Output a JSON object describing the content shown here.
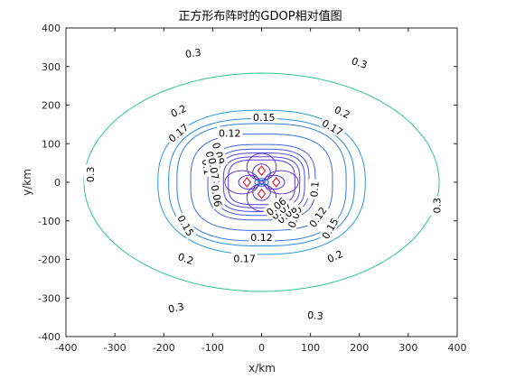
{
  "chart_data": {
    "type": "contour",
    "title": "正方形布阵时的GDOP相对值图",
    "xlabel": "x/km",
    "ylabel": "y/km",
    "xlim": [
      -400,
      400
    ],
    "ylim": [
      -400,
      400
    ],
    "xticks": [
      "-400",
      "-300",
      "-200",
      "-100",
      "0",
      "100",
      "200",
      "300",
      "400"
    ],
    "yticks": [
      "-400",
      "-300",
      "-200",
      "-100",
      "0",
      "100",
      "200",
      "300",
      "400"
    ],
    "grid": false,
    "stations": [
      [
        0,
        30
      ],
      [
        -30,
        0
      ],
      [
        30,
        0
      ],
      [
        0,
        -30
      ]
    ],
    "levels": [
      {
        "value": 0.3,
        "color": "#2ec489",
        "rx": 363,
        "ry": 283,
        "shape": 2,
        "labels": [
          {
            "text": "0.3",
            "x": -140,
            "y": 335,
            "rot": 8
          },
          {
            "text": "0.3",
            "x": 200,
            "y": 310,
            "rot": -18
          },
          {
            "text": "0.3",
            "x": -350,
            "y": 20,
            "rot": 90
          },
          {
            "text": "0.3",
            "x": 358,
            "y": -60,
            "rot": 90
          },
          {
            "text": "0.3",
            "x": -175,
            "y": -325,
            "rot": 12
          },
          {
            "text": "0.3",
            "x": 110,
            "y": -345,
            "rot": -5
          }
        ]
      },
      {
        "value": 0.2,
        "color": "#2d9ad4",
        "rx": 212,
        "ry": 187,
        "shape": 2.4,
        "labels": [
          {
            "text": "0.2",
            "x": -170,
            "y": 185,
            "rot": 25
          },
          {
            "text": "0.2",
            "x": 165,
            "y": 182,
            "rot": -25
          },
          {
            "text": "0.2",
            "x": -155,
            "y": -198,
            "rot": -20
          },
          {
            "text": "0.2",
            "x": 150,
            "y": -192,
            "rot": 25
          }
        ]
      },
      {
        "value": 0.17,
        "color": "#2b8cd8",
        "rx": 190,
        "ry": 165,
        "shape": 2.6,
        "labels": [
          {
            "text": "0.17",
            "x": -170,
            "y": 128,
            "rot": 40
          },
          {
            "text": "0.17",
            "x": 145,
            "y": 142,
            "rot": -30
          },
          {
            "text": "0.17",
            "x": -35,
            "y": -198,
            "rot": 0
          }
        ]
      },
      {
        "value": 0.15,
        "color": "#327fd9",
        "rx": 173,
        "ry": 152,
        "shape": 2.8,
        "labels": [
          {
            "text": "0.15",
            "x": 5,
            "y": 168,
            "rot": 0
          },
          {
            "text": "0.15",
            "x": -155,
            "y": -112,
            "rot": -60
          },
          {
            "text": "0.15",
            "x": 140,
            "y": -120,
            "rot": 60
          }
        ]
      },
      {
        "value": 0.12,
        "color": "#3a6fdc",
        "rx": 145,
        "ry": 125,
        "shape": 3,
        "labels": [
          {
            "text": "0.12",
            "x": -65,
            "y": 128,
            "rot": 0
          },
          {
            "text": "0.12",
            "x": 0,
            "y": -143,
            "rot": 0
          },
          {
            "text": "0.12",
            "x": 115,
            "y": -90,
            "rot": 55
          }
        ]
      },
      {
        "value": 0.1,
        "color": "#4060de",
        "rx": 110,
        "ry": 98,
        "shape": 3.2,
        "labels": [
          {
            "text": "0.1",
            "x": -112,
            "y": 40,
            "rot": -80
          },
          {
            "text": "0.1",
            "x": 108,
            "y": -18,
            "rot": 85
          }
        ]
      },
      {
        "value": 0.09,
        "color": "#4556e0",
        "rx": 97,
        "ry": 86,
        "shape": 3.3,
        "labels": [
          {
            "text": "0.09",
            "x": -88,
            "y": 75,
            "rot": -75
          },
          {
            "text": "0.09",
            "x": 68,
            "y": -90,
            "rot": 70
          }
        ]
      },
      {
        "value": 0.08,
        "color": "#4a4ce2",
        "rx": 88,
        "ry": 76,
        "shape": 3.4,
        "labels": [
          {
            "text": "0.08",
            "x": -103,
            "y": 52,
            "rot": -80
          },
          {
            "text": "0.08",
            "x": 52,
            "y": -83,
            "rot": 40
          }
        ]
      },
      {
        "value": 0.07,
        "color": "#4e43e3",
        "rx": 78,
        "ry": 66,
        "shape": 3.5,
        "labels": [
          {
            "text": "0.07",
            "x": -98,
            "y": 35,
            "rot": -80
          },
          {
            "text": "0.07",
            "x": 40,
            "y": -73,
            "rot": 40
          }
        ]
      },
      {
        "value": 0.06,
        "color": "#5139e4",
        "rx": 68,
        "ry": 58,
        "shape": 3.6,
        "labels": [
          {
            "text": "0.06",
            "x": -92,
            "y": -35,
            "rot": -80
          },
          {
            "text": "0.06",
            "x": 30,
            "y": -63,
            "rot": 40
          }
        ]
      }
    ],
    "lobes": [
      {
        "cx": 0,
        "cy": 40,
        "rx": 30,
        "ry": 35,
        "color": "#6a3ac9"
      },
      {
        "cx": 0,
        "cy": -40,
        "rx": 30,
        "ry": 35,
        "color": "#6a3ac9"
      },
      {
        "cx": -40,
        "cy": 0,
        "rx": 35,
        "ry": 30,
        "color": "#6a3ac9"
      },
      {
        "cx": 40,
        "cy": 0,
        "rx": 35,
        "ry": 30,
        "color": "#6a3ac9"
      },
      {
        "cx": 0,
        "cy": 25,
        "rx": 18,
        "ry": 22,
        "color": "#5a34d2"
      },
      {
        "cx": 0,
        "cy": -25,
        "rx": 18,
        "ry": 22,
        "color": "#5a34d2"
      },
      {
        "cx": -25,
        "cy": 0,
        "rx": 22,
        "ry": 18,
        "color": "#5a34d2"
      },
      {
        "cx": 25,
        "cy": 0,
        "rx": 22,
        "ry": 18,
        "color": "#5a34d2"
      },
      {
        "cx": 0,
        "cy": 0,
        "rx": 14,
        "ry": 10,
        "color": "#2b4fe0"
      },
      {
        "cx": 0,
        "cy": 0,
        "rx": 8,
        "ry": 6,
        "color": "#27b5c9"
      }
    ],
    "station_color": "#e0243a"
  }
}
